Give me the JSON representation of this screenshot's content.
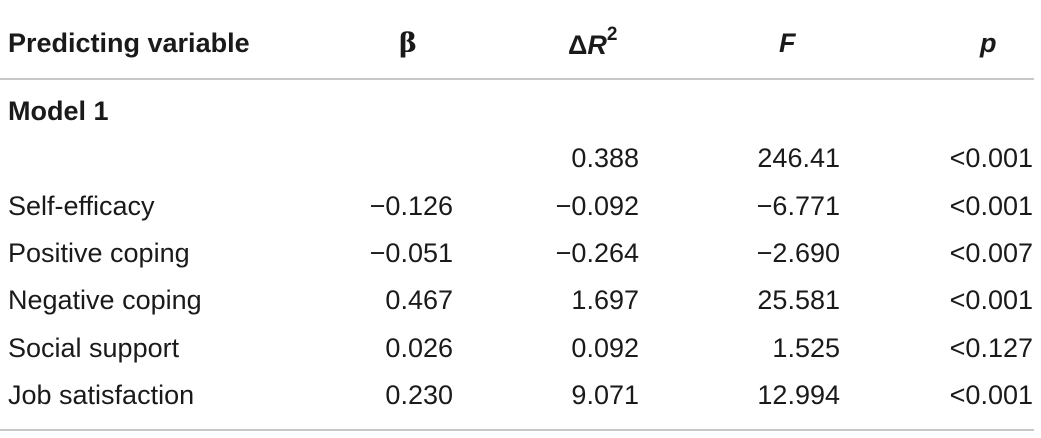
{
  "table": {
    "headers": {
      "variable": "Predicting variable",
      "beta": "β",
      "delta_r2_prefix": "Δ",
      "delta_r2_var": "R",
      "delta_r2_sup": "2",
      "f": "F",
      "p": "p"
    },
    "section": "Model 1",
    "rows": [
      {
        "variable": "",
        "beta": "",
        "delta_r2": "0.388",
        "f": "246.41",
        "p": "<0.001"
      },
      {
        "variable": "Self-efficacy",
        "beta": "−0.126",
        "delta_r2": "−0.092",
        "f": "−6.771",
        "p": "<0.001"
      },
      {
        "variable": "Positive coping",
        "beta": "−0.051",
        "delta_r2": "−0.264",
        "f": "−2.690",
        "p": "<0.007"
      },
      {
        "variable": "Negative coping",
        "beta": "0.467",
        "delta_r2": "1.697",
        "f": "25.581",
        "p": "<0.001"
      },
      {
        "variable": "Social support",
        "beta": "0.026",
        "delta_r2": "0.092",
        "f": "1.525",
        "p": "<0.127"
      },
      {
        "variable": "Job satisfaction",
        "beta": "0.230",
        "delta_r2": "9.071",
        "f": "12.994",
        "p": "<0.001"
      }
    ]
  }
}
